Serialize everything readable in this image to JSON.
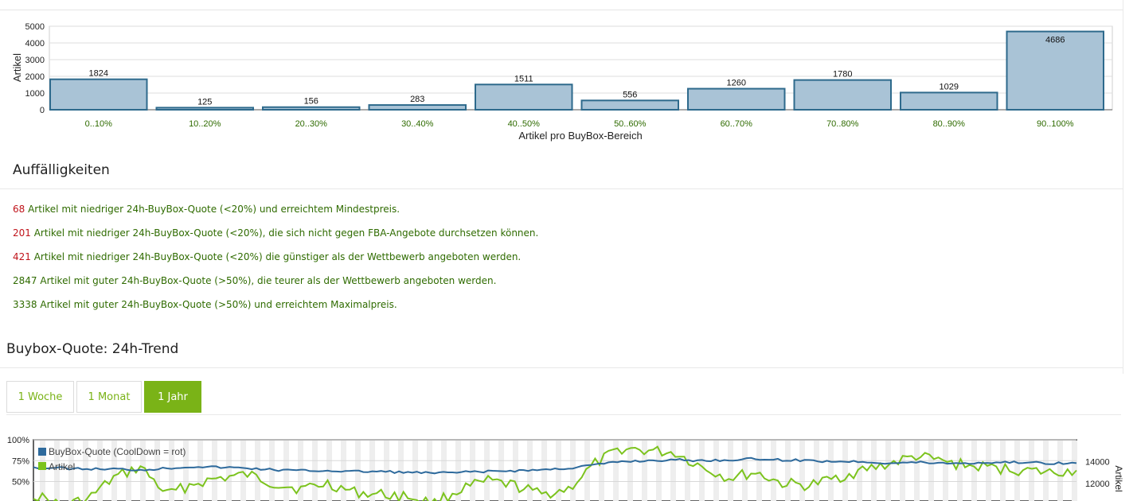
{
  "colors": {
    "bar_fill": "#a9c3d6",
    "bar_stroke": "#2e6a8c",
    "accent_green": "#7ab317",
    "text_green": "#2f6b00",
    "count_red": "#c0141b",
    "line_blue": "#2e6a9c",
    "line_green": "#7cc31e"
  },
  "distribution_chart": {
    "chart_data": {
      "type": "bar",
      "categories": [
        "0..10%",
        "10..20%",
        "20..30%",
        "30..40%",
        "40..50%",
        "50..60%",
        "60..70%",
        "70..80%",
        "80..90%",
        "90..100%"
      ],
      "values": [
        1824,
        125,
        156,
        283,
        1511,
        556,
        1260,
        1780,
        1029,
        4686
      ],
      "xlabel": "Artikel pro BuyBox-Bereich",
      "ylabel": "Artikel",
      "ylim": [
        0,
        5000
      ],
      "yticks": [
        "5000",
        "4000",
        "3000",
        "2000",
        "1000",
        "0"
      ],
      "grid": true
    }
  },
  "issues": {
    "title": "Auffälligkeiten",
    "items": [
      {
        "count": "68",
        "severity": "red",
        "text": " Artikel mit niedriger 24h-BuyBox-Quote (<20%) und erreichtem Mindestpreis."
      },
      {
        "count": "201",
        "severity": "red",
        "text": " Artikel mit niedriger 24h-BuyBox-Quote (<20%), die sich nicht gegen FBA-Angebote durchsetzen können."
      },
      {
        "count": "421",
        "severity": "red",
        "text": " Artikel mit niedriger 24h-BuyBox-Quote (<20%) die günstiger als der Wettbewerb angeboten werden."
      },
      {
        "count": "2847",
        "severity": "green",
        "text": " Artikel mit guter 24h-BuyBox-Quote (>50%), die teurer als der Wettbewerb angeboten werden."
      },
      {
        "count": "3338",
        "severity": "green",
        "text": " Artikel mit guter 24h-BuyBox-Quote (>50%) und erreichtem Maximalpreis."
      }
    ]
  },
  "trend": {
    "title": "Buybox-Quote: 24h-Trend",
    "tabs": [
      {
        "label": "1 Woche",
        "active": false
      },
      {
        "label": "1 Monat",
        "active": false
      },
      {
        "label": "1 Jahr",
        "active": true
      }
    ],
    "chart_data": {
      "type": "line",
      "legend": [
        "BuyBox-Quote (CoolDown = rot)",
        "Artikel"
      ],
      "legend_placement": "top-left",
      "y_left_ticks": [
        "100%",
        "75%",
        "50%"
      ],
      "y_right_ticks": [
        "14000",
        "12000"
      ],
      "y_right_label": "Artikel",
      "series": [
        {
          "name": "BuyBox-Quote (CoolDown = rot)",
          "values": [
            67,
            66,
            65,
            65,
            64,
            66,
            68,
            67,
            66,
            64,
            63,
            63,
            62,
            62,
            61,
            60,
            61,
            62,
            63,
            64,
            66,
            70,
            74,
            75,
            76,
            75,
            76,
            77,
            76,
            75,
            74,
            74,
            72,
            73,
            72,
            72,
            73,
            73,
            72,
            72
          ]
        },
        {
          "name": "Artikel",
          "values": [
            11000,
            10000,
            10500,
            12500,
            13500,
            11000,
            12000,
            12500,
            12800,
            12000,
            11500,
            12000,
            11200,
            11000,
            10800,
            10200,
            11500,
            12200,
            11800,
            11000,
            11500,
            13800,
            15200,
            15000,
            14800,
            13500,
            12500,
            13000,
            12000,
            11800,
            12500,
            13200,
            13800,
            14500,
            14000,
            13600,
            13400,
            13200,
            13000,
            13200
          ]
        }
      ]
    }
  }
}
